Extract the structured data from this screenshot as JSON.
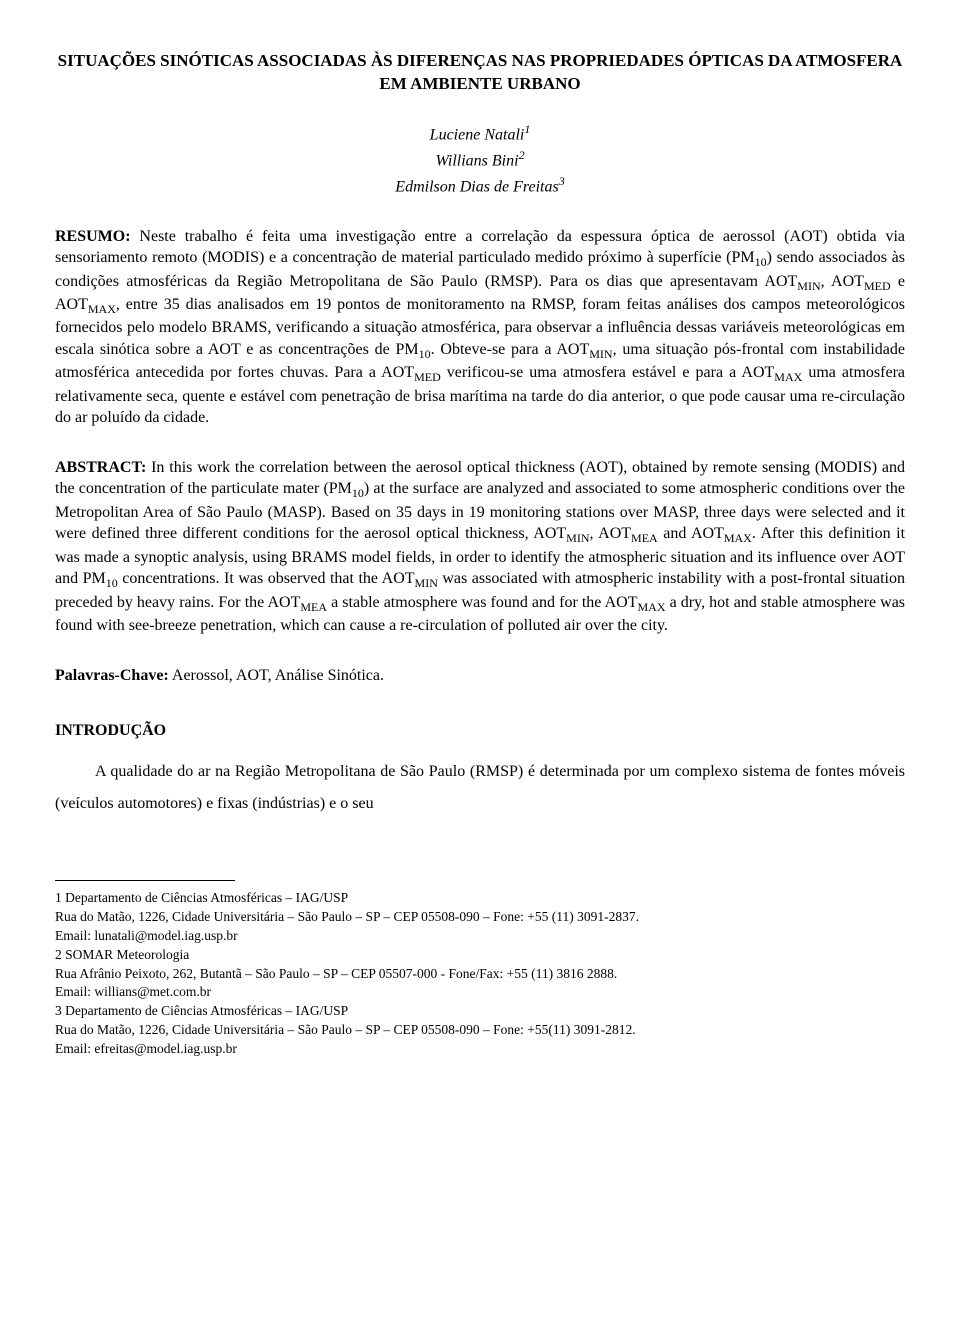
{
  "title": "SITUAÇÕES SINÓTICAS ASSOCIADAS ÀS DIFERENÇAS NAS PROPRIEDADES ÓPTICAS DA ATMOSFERA EM AMBIENTE URBANO",
  "authors": {
    "a1": {
      "name": "Luciene Natali",
      "sup": "1"
    },
    "a2": {
      "name": "Willians Bini",
      "sup": "2"
    },
    "a3": {
      "name": "Edmilson Dias de Freitas",
      "sup": "3"
    }
  },
  "resumo": {
    "label": "RESUMO:",
    "text_html": " Neste trabalho é feita uma investigação entre a correlação da espessura óptica de aerossol (AOT) obtida via sensoriamento remoto (MODIS) e a concentração de material particulado medido próximo à superfície (PM<sub>10</sub>) sendo associados às condições atmosféricas da Região Metropolitana de São Paulo (RMSP). Para os dias que apresentavam AOT<sub>MIN</sub>, AOT<sub>MED</sub> e AOT<sub>MAX</sub>, entre 35 dias analisados em 19 pontos de monitoramento na RMSP, foram feitas análises dos campos meteorológicos fornecidos pelo modelo BRAMS, verificando a situação atmosférica, para observar a influência dessas variáveis meteorológicas em escala sinótica sobre a AOT e as concentrações de PM<sub>10</sub>. Obteve-se para a AOT<sub>MIN</sub>, uma situação pós-frontal com instabilidade atmosférica antecedida por fortes chuvas. Para a AOT<sub>MED</sub> verificou-se uma atmosfera estável e para a AOT<sub>MAX</sub> uma atmosfera relativamente seca, quente e estável com penetração de brisa marítima na tarde do dia anterior, o que pode causar uma re-circulação do ar poluído da cidade."
  },
  "abstract": {
    "label": "ABSTRACT:",
    "text_html": " In this work the correlation between the aerosol optical thickness (AOT), obtained by remote sensing (MODIS) and the concentration of the particulate mater (PM<sub>10</sub>) at the surface are analyzed and associated to some atmospheric conditions over the Metropolitan Area of São Paulo (MASP). Based on 35 days in 19 monitoring stations over MASP, three days were selected and it were defined three different conditions for the aerosol optical thickness, AOT<sub>MIN</sub>, AOT<sub>MEA</sub> and AOT<sub>MAX</sub>. After this definition it was made a synoptic analysis, using BRAMS model fields, in order to identify the atmospheric situation and its influence over AOT and PM<sub>10</sub> concentrations. It was observed that the AOT<sub>MIN</sub> was associated with atmospheric instability with a post-frontal situation preceded by heavy rains. For the AOT<sub>MEA</sub> a stable atmosphere was found and for the AOT<sub>MAX</sub> a dry, hot and stable atmosphere was found with see-breeze penetration, which can cause a re-circulation of polluted air over the city."
  },
  "keywords": {
    "label": "Palavras-Chave:",
    "text": " Aerossol, AOT, Análise Sinótica."
  },
  "intro": {
    "heading": "INTRODUÇÃO",
    "body": "A qualidade do ar na Região Metropolitana de São Paulo (RMSP) é determinada por um complexo sistema de fontes móveis (veículos automotores) e fixas (indústrias) e o seu"
  },
  "footnotes": {
    "f1a": "1 Departamento de Ciências Atmosféricas – IAG/USP",
    "f1b": "Rua do Matão, 1226, Cidade Universitária – São Paulo – SP – CEP 05508-090 – Fone: +55 (11) 3091-2837.",
    "f1c": "Email: lunatali@model.iag.usp.br",
    "f2a": "2 SOMAR Meteorologia",
    "f2b": "Rua Afrânio Peixoto, 262, Butantã – São Paulo – SP – CEP 05507-000 - Fone/Fax: +55 (11) 3816 2888.",
    "f2c": "Email: willians@met.com.br",
    "f3a": "3 Departamento de Ciências Atmosféricas – IAG/USP",
    "f3b": "Rua do Matão, 1226, Cidade Universitária – São Paulo – SP – CEP 05508-090 – Fone: +55(11) 3091-2812.",
    "f3c": "Email:  efreitas@model.iag.usp.br"
  }
}
